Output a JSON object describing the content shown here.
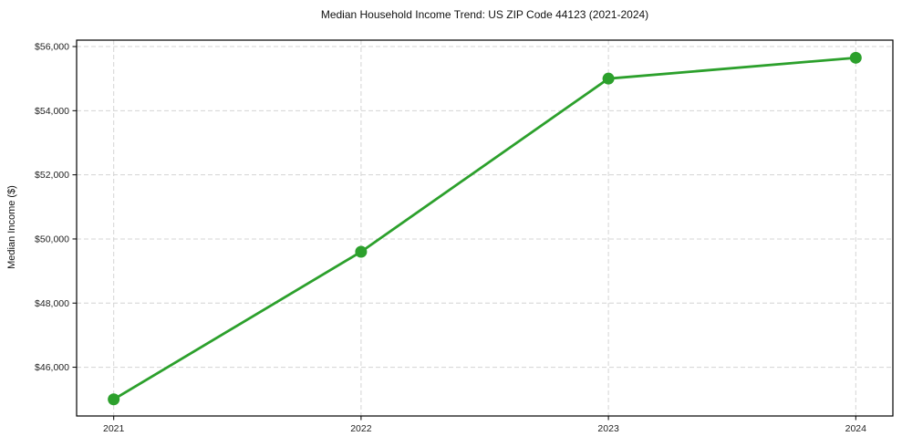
{
  "chart_data": {
    "type": "line",
    "title": "Median Household Income Trend: US ZIP Code 44123 (2021-2024)",
    "ylabel": "Median Income ($)",
    "xlabel": "",
    "x": [
      2021,
      2022,
      2023,
      2024
    ],
    "xtick_labels": [
      "2021",
      "2022",
      "2023",
      "2024"
    ],
    "series": [
      {
        "name": "Median Household Income",
        "values": [
          45000,
          49600,
          55000,
          55650
        ]
      }
    ],
    "yticks": [
      46000,
      48000,
      50000,
      52000,
      54000,
      56000
    ],
    "ytick_labels": [
      "$46,000",
      "$48,000",
      "$50,000",
      "$52,000",
      "$54,000",
      "$56,000"
    ],
    "xlim": [
      2020.85,
      2024.15
    ],
    "ylim": [
      44480,
      56200
    ],
    "grid": true,
    "grid_style": "dashed",
    "legend": "none",
    "colors": {
      "line": "#2ca02c",
      "marker": "#2ca02c",
      "grid": "#d4d4d4",
      "spine": "#000000",
      "tick": "#000000",
      "text": "#222222",
      "background": "#ffffff"
    }
  }
}
